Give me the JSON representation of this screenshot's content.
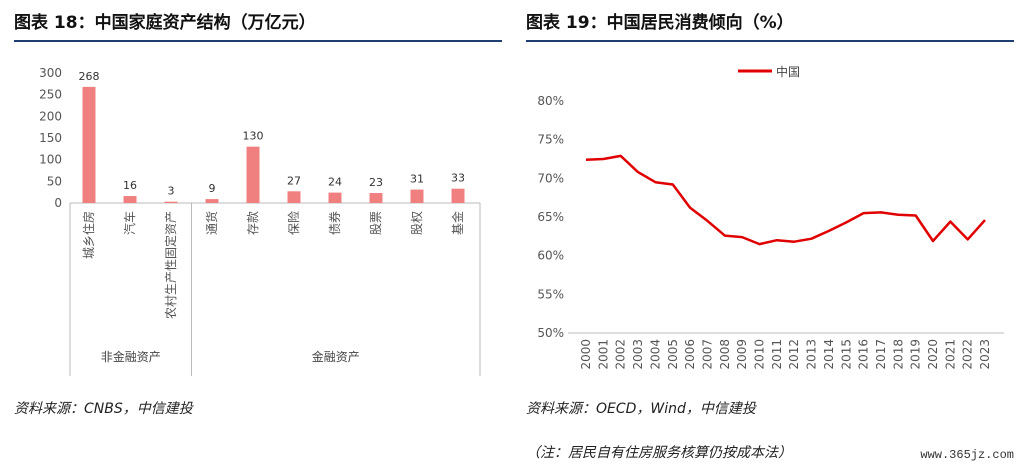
{
  "left": {
    "title": "图表 18：中国家庭资产结构（万亿元）",
    "source": "资料来源：CNBS，中信建投"
  },
  "right": {
    "title": "图表 19：中国居民消费倾向（%）",
    "source": "资料来源：OECD，Wind，中信建投",
    "note": "（注：居民自有住房服务核算仍按成本法）"
  },
  "watermark": "www.365jz.com",
  "colors": {
    "bar": "#f08080",
    "line": "#e00000",
    "rule": "#1f3f73"
  },
  "chart_data": [
    {
      "type": "bar",
      "title": "图表 18：中国家庭资产结构（万亿元）",
      "categories": [
        "城乡住房",
        "汽车",
        "农村生产性固定资产",
        "通货",
        "存款",
        "保险",
        "债券",
        "股票",
        "股权",
        "基金"
      ],
      "values": [
        268,
        16,
        3,
        9,
        130,
        27,
        24,
        23,
        31,
        33
      ],
      "groups": [
        {
          "name": "非金融资产",
          "start": 0,
          "end": 2
        },
        {
          "name": "金融资产",
          "start": 3,
          "end": 9
        }
      ],
      "yticks": [
        0,
        50,
        100,
        150,
        200,
        250,
        300
      ],
      "ylim": [
        0,
        300
      ],
      "grid": false
    },
    {
      "type": "line",
      "title": "图表 19：中国居民消费倾向（%）",
      "x": [
        "2000",
        "2001",
        "2002",
        "2003",
        "2004",
        "2005",
        "2006",
        "2007",
        "2008",
        "2009",
        "2010",
        "2011",
        "2012",
        "2013",
        "2014",
        "2015",
        "2016",
        "2017",
        "2018",
        "2019",
        "2020",
        "2021",
        "2022",
        "2023"
      ],
      "series": [
        {
          "name": "中国",
          "values": [
            72.4,
            72.5,
            72.9,
            70.8,
            69.5,
            69.2,
            66.2,
            64.5,
            62.6,
            62.4,
            61.5,
            62.0,
            61.8,
            62.2,
            63.2,
            64.3,
            65.5,
            65.6,
            65.3,
            65.2,
            61.9,
            64.4,
            62.1,
            64.6
          ]
        }
      ],
      "yticks": [
        "50%",
        "55%",
        "60%",
        "65%",
        "70%",
        "75%",
        "80%"
      ],
      "ylim": [
        50,
        80
      ],
      "legend": "top-left",
      "grid": false
    }
  ]
}
